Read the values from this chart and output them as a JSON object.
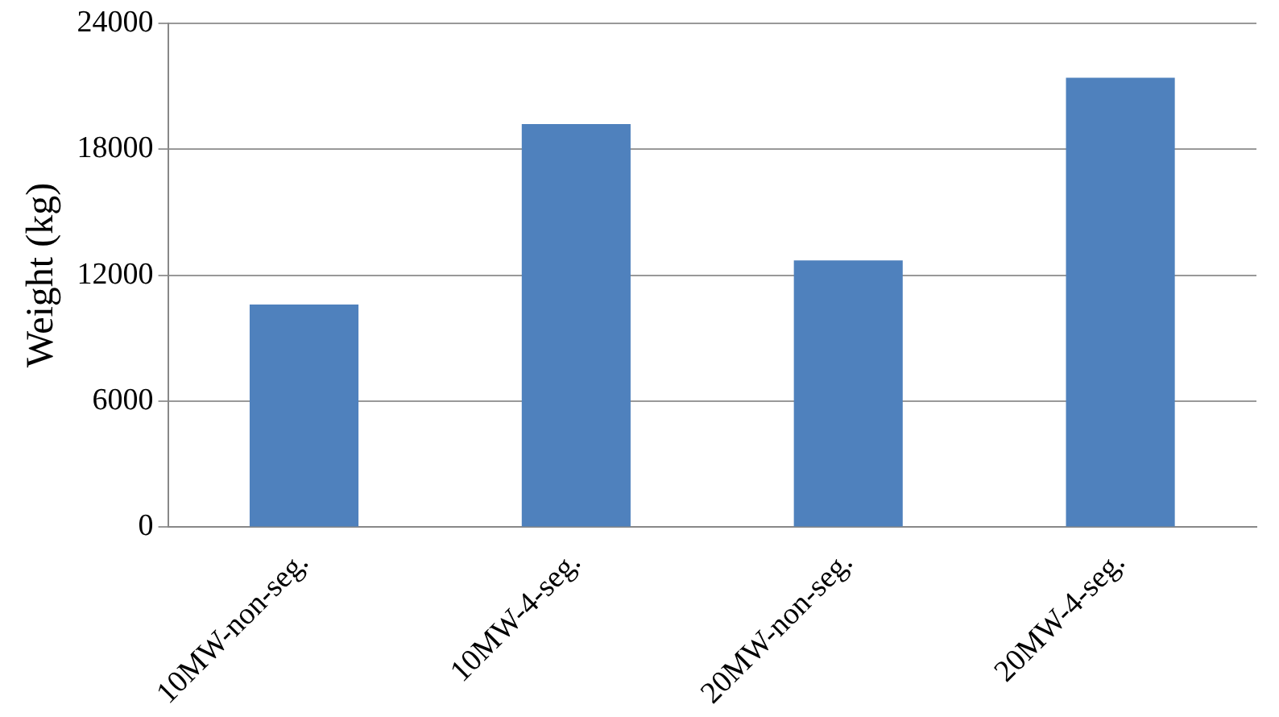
{
  "chart_data": {
    "type": "bar",
    "ylabel": "Weight (kg)",
    "categories": [
      "10MW-non-seg.",
      "10MW-4-seg.",
      "20MW-non-seg.",
      "20MW-4-seg."
    ],
    "values": [
      10600,
      19200,
      12700,
      21400
    ],
    "color": "#4f81bd",
    "ylim": [
      0,
      24000
    ],
    "yticks": [
      0,
      6000,
      12000,
      18000,
      24000
    ],
    "grid": "y",
    "legend": false
  }
}
